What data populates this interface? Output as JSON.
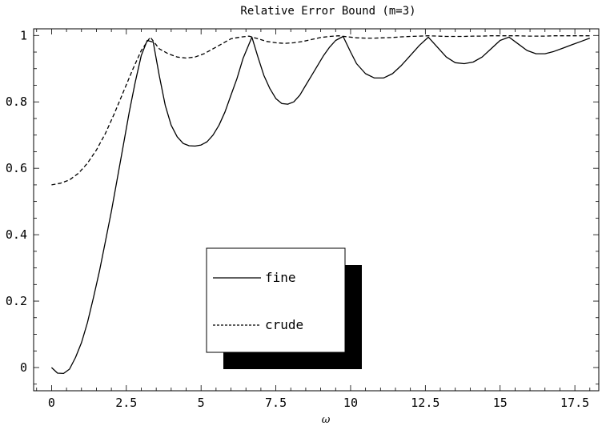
{
  "chart_data": {
    "type": "line",
    "title": "Relative Error Bound (m=3)",
    "xlabel": "ω",
    "ylabel": "",
    "xlim": [
      -0.6,
      18.3
    ],
    "ylim": [
      -0.07,
      1.02
    ],
    "x_ticks": [
      0,
      2.5,
      5,
      7.5,
      10,
      12.5,
      15,
      17.5
    ],
    "x_tick_labels": [
      "0",
      "2.5",
      "5",
      "7.5",
      "10",
      "12.5",
      "15",
      "17.5"
    ],
    "y_ticks": [
      0,
      0.2,
      0.4,
      0.6,
      0.8,
      1
    ],
    "y_tick_labels": [
      "0",
      "0.2",
      "0.4",
      "0.6",
      "0.8",
      "1"
    ],
    "grid": false,
    "legend_position": "lower-center",
    "series": [
      {
        "name": "fine",
        "style": "solid",
        "color": "#000000",
        "x": [
          0,
          0.2,
          0.4,
          0.6,
          0.8,
          1.0,
          1.2,
          1.4,
          1.6,
          1.8,
          2.0,
          2.2,
          2.4,
          2.6,
          2.8,
          3.0,
          3.2,
          3.4,
          3.6,
          3.8,
          4.0,
          4.2,
          4.4,
          4.6,
          4.8,
          5.0,
          5.2,
          5.4,
          5.6,
          5.8,
          6.0,
          6.2,
          6.4,
          6.7,
          6.9,
          7.1,
          7.3,
          7.5,
          7.7,
          7.9,
          8.1,
          8.3,
          8.5,
          8.7,
          8.9,
          9.1,
          9.3,
          9.5,
          9.75,
          10.0,
          10.2,
          10.5,
          10.8,
          11.1,
          11.4,
          11.7,
          12.0,
          12.3,
          12.6,
          12.9,
          13.2,
          13.5,
          13.8,
          14.1,
          14.4,
          14.7,
          15.0,
          15.3,
          15.6,
          15.9,
          16.2,
          16.5,
          16.8,
          17.1,
          17.4,
          17.7,
          18.0
        ],
        "y": [
          0.0,
          -0.017,
          -0.018,
          -0.005,
          0.03,
          0.075,
          0.135,
          0.21,
          0.29,
          0.38,
          0.47,
          0.57,
          0.67,
          0.77,
          0.86,
          0.94,
          0.985,
          0.98,
          0.88,
          0.79,
          0.73,
          0.695,
          0.675,
          0.668,
          0.667,
          0.67,
          0.68,
          0.7,
          0.73,
          0.77,
          0.82,
          0.87,
          0.93,
          0.995,
          0.935,
          0.88,
          0.84,
          0.81,
          0.795,
          0.793,
          0.8,
          0.82,
          0.85,
          0.88,
          0.91,
          0.94,
          0.965,
          0.985,
          0.997,
          0.95,
          0.915,
          0.885,
          0.872,
          0.872,
          0.885,
          0.91,
          0.94,
          0.97,
          0.995,
          0.965,
          0.935,
          0.918,
          0.915,
          0.92,
          0.935,
          0.96,
          0.985,
          0.995,
          0.975,
          0.955,
          0.945,
          0.945,
          0.952,
          0.962,
          0.972,
          0.982,
          0.992
        ]
      },
      {
        "name": "crude",
        "style": "dashed",
        "color": "#000000",
        "x": [
          0,
          0.3,
          0.6,
          0.9,
          1.2,
          1.5,
          1.8,
          2.1,
          2.4,
          2.7,
          3.0,
          3.3,
          3.6,
          3.9,
          4.2,
          4.5,
          4.8,
          5.1,
          5.4,
          5.7,
          6.0,
          6.3,
          6.6,
          6.9,
          7.2,
          7.5,
          7.8,
          8.1,
          8.4,
          8.7,
          9.0,
          9.3,
          9.6,
          9.9,
          10.2,
          10.5,
          10.8,
          11.1,
          11.4,
          11.7,
          12.0,
          12.3,
          12.6,
          12.9,
          13.2,
          13.5,
          13.8,
          14.1,
          14.4,
          14.7,
          15.0,
          15.3,
          15.6,
          15.9,
          16.2,
          16.5,
          16.8,
          17.1,
          17.4,
          17.7,
          18.0
        ],
        "y": [
          0.55,
          0.555,
          0.565,
          0.585,
          0.615,
          0.655,
          0.705,
          0.765,
          0.83,
          0.895,
          0.955,
          0.995,
          0.96,
          0.945,
          0.935,
          0.932,
          0.935,
          0.945,
          0.96,
          0.975,
          0.99,
          0.995,
          0.998,
          0.99,
          0.982,
          0.978,
          0.976,
          0.978,
          0.982,
          0.988,
          0.994,
          0.997,
          0.999,
          0.996,
          0.993,
          0.992,
          0.992,
          0.993,
          0.994,
          0.996,
          0.997,
          0.998,
          0.999,
          0.998,
          0.997,
          0.997,
          0.997,
          0.998,
          0.998,
          0.999,
          0.999,
          0.999,
          0.999,
          0.998,
          0.998,
          0.998,
          0.999,
          0.999,
          0.999,
          0.999,
          0.999
        ]
      }
    ]
  }
}
